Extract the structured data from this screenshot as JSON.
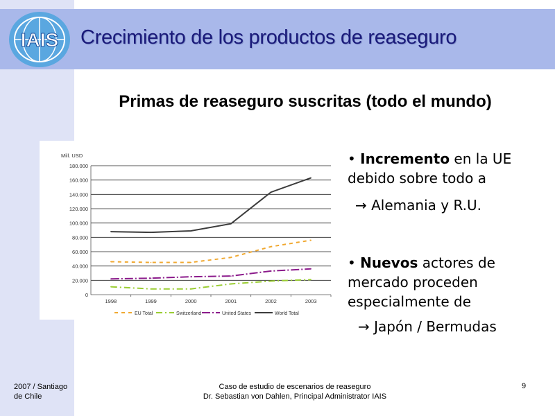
{
  "slide": {
    "title": "Crecimiento de los productos de reaseguro",
    "subtitle": "Primas de reaseguro suscritas (todo el mundo)",
    "logo_text": "IAIS"
  },
  "bullets": [
    {
      "bold": "Incremento",
      "rest": " en la UE debido sobre todo a",
      "sub": "Alemania y R.U."
    },
    {
      "bold": "Nuevos",
      "rest": " actores de mercado proceden especialmente de",
      "sub": "Japón / Bermudas"
    }
  ],
  "footer": {
    "left_line1": "2007 / Santiago",
    "left_line2": "de Chile",
    "center_line1": "Caso de estudio de escenarios de reaseguro",
    "center_line2": "Dr. Sebastian von Dahlen, Principal Administrator IAIS",
    "page": "9"
  },
  "colors": {
    "header": "#a9b8ea",
    "side": "#dfe3f6",
    "title": "#1a1a7a"
  },
  "chart_data": {
    "type": "line",
    "title": "",
    "ylabel": "Mill. USD",
    "xlabel": "",
    "categories": [
      "1998",
      "1999",
      "2000",
      "2001",
      "2002",
      "2003"
    ],
    "ylim": [
      0,
      180000
    ],
    "yticks": [
      0,
      20000,
      40000,
      60000,
      80000,
      100000,
      120000,
      140000,
      160000,
      180000
    ],
    "ytick_labels": [
      "0",
      "20.000",
      "40.000",
      "60.000",
      "80.000",
      "100.000",
      "120.000",
      "140.000",
      "160.000",
      "180.000"
    ],
    "grid": true,
    "legend": "bottom",
    "series": [
      {
        "name": "EU Total",
        "values": [
          46000,
          45000,
          45000,
          52000,
          67000,
          76000
        ],
        "color": "#f0a830",
        "dash": "5,5"
      },
      {
        "name": "Switzerland",
        "values": [
          11000,
          8000,
          8000,
          15000,
          19000,
          21000
        ],
        "color": "#9acd32",
        "dash": "9,4,2,4"
      },
      {
        "name": "United States",
        "values": [
          22000,
          23000,
          25000,
          26000,
          33000,
          36000
        ],
        "color": "#8b1a8b",
        "dash": "12,3,2,3"
      },
      {
        "name": "World Total",
        "values": [
          88000,
          87000,
          89000,
          99000,
          143000,
          163000
        ],
        "color": "#3c3c3c",
        "dash": ""
      }
    ]
  }
}
